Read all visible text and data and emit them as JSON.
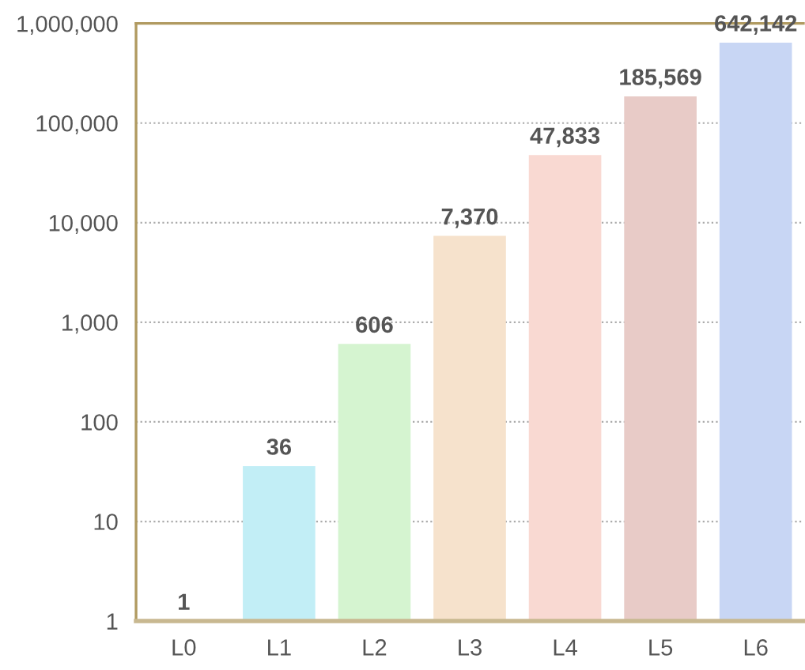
{
  "chart_data": {
    "type": "bar",
    "categories": [
      "L0",
      "L1",
      "L2",
      "L3",
      "L4",
      "L5",
      "L6"
    ],
    "values": [
      1,
      36,
      606,
      7370,
      47833,
      185569,
      642142
    ],
    "colors": [
      "#c8d6f4",
      "#c2eef6",
      "#d5f4d0",
      "#f6e2cc",
      "#f9d9d2",
      "#e8cbc7",
      "#c8d6f4"
    ],
    "value_labels": [
      "1",
      "36",
      "606",
      "7,370",
      "47,833",
      "185,569",
      "642,142"
    ],
    "log": "y",
    "ylim": [
      1,
      1000000
    ],
    "yticks": [
      {
        "value": 1,
        "label": "1"
      },
      {
        "value": 10,
        "label": "10"
      },
      {
        "value": 100,
        "label": "100"
      },
      {
        "value": 1000,
        "label": "1,000"
      },
      {
        "value": 10000,
        "label": "10,000"
      },
      {
        "value": 100000,
        "label": "100,000"
      },
      {
        "value": 1000000,
        "label": "1,000,000"
      }
    ],
    "grid": "y"
  }
}
